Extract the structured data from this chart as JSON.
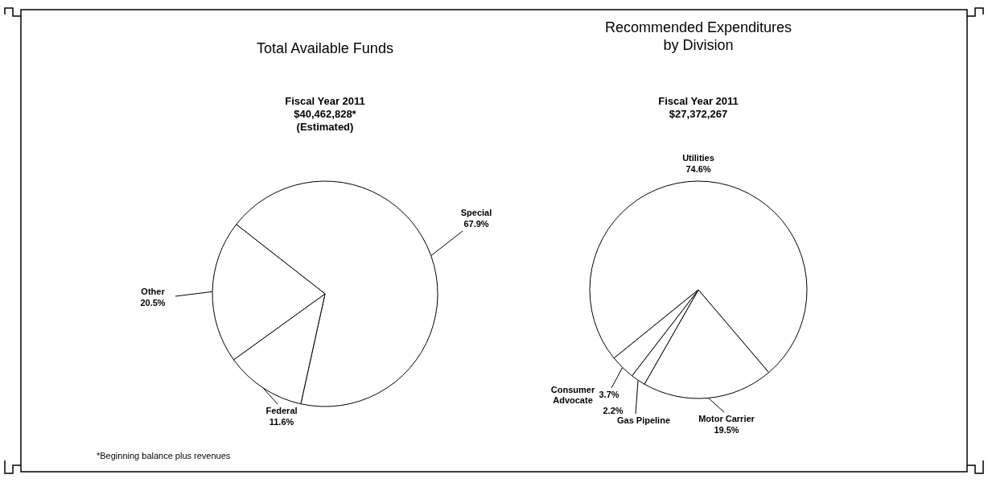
{
  "chart_data": [
    {
      "type": "pie",
      "title": "Total Available Funds",
      "subtitle": "Fiscal Year 2011\n$40,462,828*\n(Estimated)",
      "categories": [
        "Special",
        "Federal",
        "Other"
      ],
      "values": [
        67.9,
        11.6,
        20.5
      ],
      "value_labels": [
        "67.9%",
        "11.6%",
        "20.5%"
      ],
      "colors": [
        "#ffffff",
        "#ffffff",
        "#ffffff"
      ],
      "annotations": [
        "*Beginning balance plus revenues"
      ]
    },
    {
      "type": "pie",
      "title": "Recommended Expenditures\nby Division",
      "subtitle": "Fiscal Year 2011\n$27,372,267",
      "categories": [
        "Utilities",
        "Motor Carrier",
        "Gas Pipeline",
        "Consumer Advocate"
      ],
      "values": [
        74.6,
        19.5,
        2.2,
        3.7
      ],
      "value_labels": [
        "74.6%",
        "19.5%",
        "2.2%",
        "3.7%"
      ],
      "colors": [
        "#ffffff",
        "#ffffff",
        "#ffffff",
        "#ffffff"
      ]
    }
  ]
}
